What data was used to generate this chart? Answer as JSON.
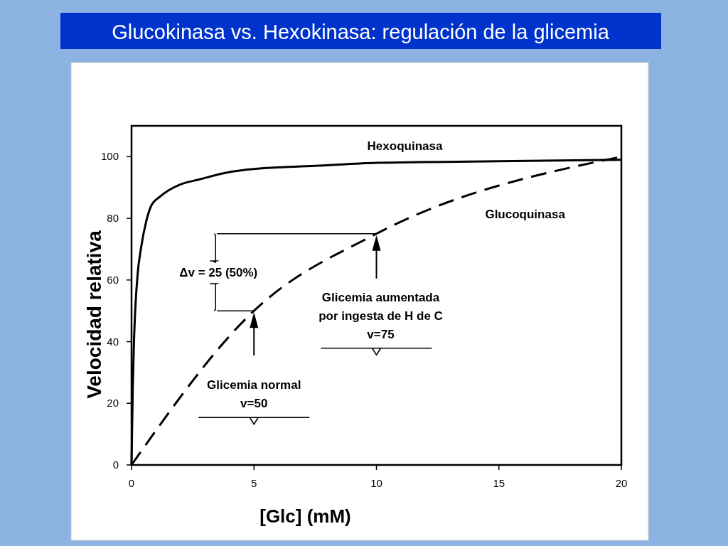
{
  "chart_data": {
    "type": "line",
    "title": "Glucokinasa vs. Hexokinasa: regulación de la glicemia",
    "xlabel": "[Glc] (mM)",
    "ylabel": "Velocidad relativa",
    "xlim": [
      0,
      20
    ],
    "ylim": [
      0,
      110
    ],
    "xticks": [
      0,
      5,
      10,
      15,
      20
    ],
    "yticks": [
      0,
      20,
      40,
      60,
      80,
      100
    ],
    "grid": false,
    "legend": false,
    "marker": "none",
    "series": [
      {
        "name": "Hexoquinasa",
        "color": "#000000",
        "line_style": "solid",
        "x": [
          0,
          0.05,
          0.1,
          0.15,
          0.25,
          0.38,
          0.6,
          0.8,
          1.16,
          1.5,
          2,
          2.76,
          4,
          5,
          7.5,
          10,
          15,
          20
        ],
        "values": [
          0,
          25,
          40,
          50,
          62,
          70,
          79,
          84,
          87,
          89,
          91,
          92.6,
          95,
          96,
          97,
          98,
          98.5,
          99
        ]
      },
      {
        "name": "Glucoquinasa",
        "color": "#000000",
        "line_style": "dashed",
        "x": [
          0,
          5,
          10,
          20
        ],
        "values": [
          0,
          50,
          75,
          100
        ]
      }
    ],
    "annotations": [
      "Glicemia normal",
      "v=50",
      "Glicemia aumentada",
      "por ingesta de H de C",
      "v=75",
      "Δv = 25 (50%)"
    ]
  }
}
